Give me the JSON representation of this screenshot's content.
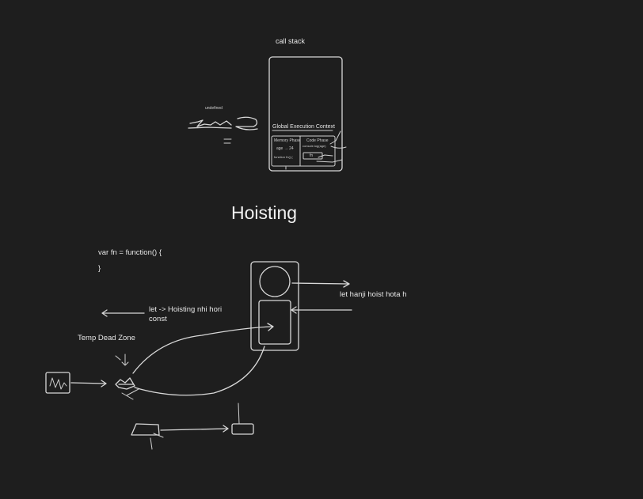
{
  "call_stack": {
    "label": "call stack",
    "gec_label": "Global Execution Context",
    "memory_phase": "Memory Phase",
    "code_phase": "Code Phase",
    "age_entry": "age → 24",
    "function_entry": "function fn() {",
    "fn_call": "fn",
    "code_entry": "console.log(age)",
    "side_label": "undefined"
  },
  "main_title": "Hoisting",
  "code": {
    "line1": "var fn = function() {",
    "line2": "}"
  },
  "notes": {
    "let_no_hoist": "let -> Hoisting nhi hori",
    "const": "const",
    "let_hoist": "let hanji hoist hota h",
    "tdz": "Temp Dead Zone"
  }
}
